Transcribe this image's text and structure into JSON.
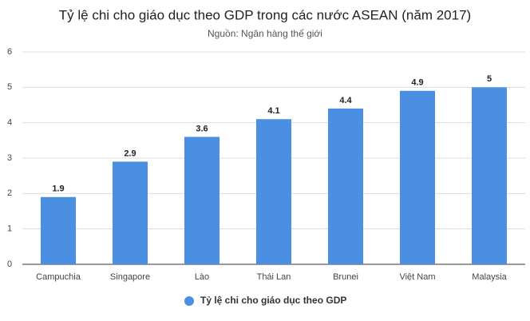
{
  "chart_data": {
    "type": "bar",
    "title": "Tỷ lệ chi cho giáo dục theo GDP trong các nước ASEAN (năm 2017)",
    "subtitle": "Nguồn: Ngân hàng thế giới",
    "categories": [
      "Campuchia",
      "Singapore",
      "Lào",
      "Thái Lan",
      "Brunei",
      "Việt Nam",
      "Malaysia"
    ],
    "series": [
      {
        "name": "Tỷ lệ chi cho giáo dục theo GDP",
        "color": "#4a8fe2",
        "values": [
          1.9,
          2.9,
          3.6,
          4.1,
          4.4,
          4.9,
          5
        ]
      }
    ],
    "ylim": [
      0,
      6
    ],
    "yticks": [
      0,
      1,
      2,
      3,
      4,
      5,
      6
    ],
    "grid": true,
    "legend": "bottom"
  }
}
